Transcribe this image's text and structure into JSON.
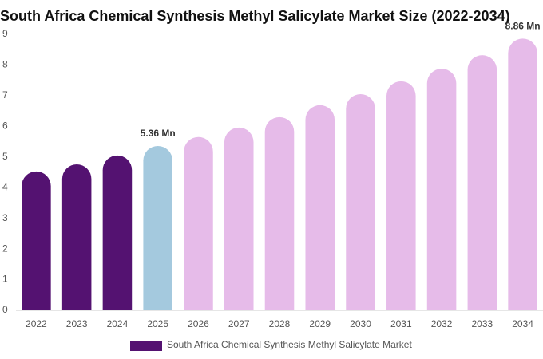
{
  "chart_data": {
    "type": "bar",
    "title": "South Africa Chemical Synthesis Methyl Salicylate Market Size (2022-2034)",
    "categories": [
      "2022",
      "2023",
      "2024",
      "2025",
      "2026",
      "2027",
      "2028",
      "2029",
      "2030",
      "2031",
      "2032",
      "2033",
      "2034"
    ],
    "series": [
      {
        "name": "South Africa Chemical Synthesis Methyl Salicylate Market",
        "color": "#541271",
        "values": [
          4.53,
          4.76,
          5.05,
          5.36,
          5.65,
          5.96,
          6.3,
          6.69,
          7.05,
          7.47,
          7.88,
          8.32,
          8.86
        ],
        "bar_colors": [
          "#541271",
          "#541271",
          "#541271",
          "#a4c9de",
          "#e6bbe9",
          "#e6bbe9",
          "#e6bbe9",
          "#e6bbe9",
          "#e6bbe9",
          "#e6bbe9",
          "#e6bbe9",
          "#e6bbe9",
          "#e6bbe9"
        ],
        "value_labels": [
          null,
          null,
          null,
          "5.36 Mn",
          null,
          null,
          null,
          null,
          null,
          null,
          null,
          null,
          "8.86 Mn"
        ]
      }
    ],
    "ylim": [
      0,
      9
    ],
    "yticks": [
      0,
      1,
      2,
      3,
      4,
      5,
      6,
      7,
      8,
      9
    ],
    "legend": "bottom"
  }
}
